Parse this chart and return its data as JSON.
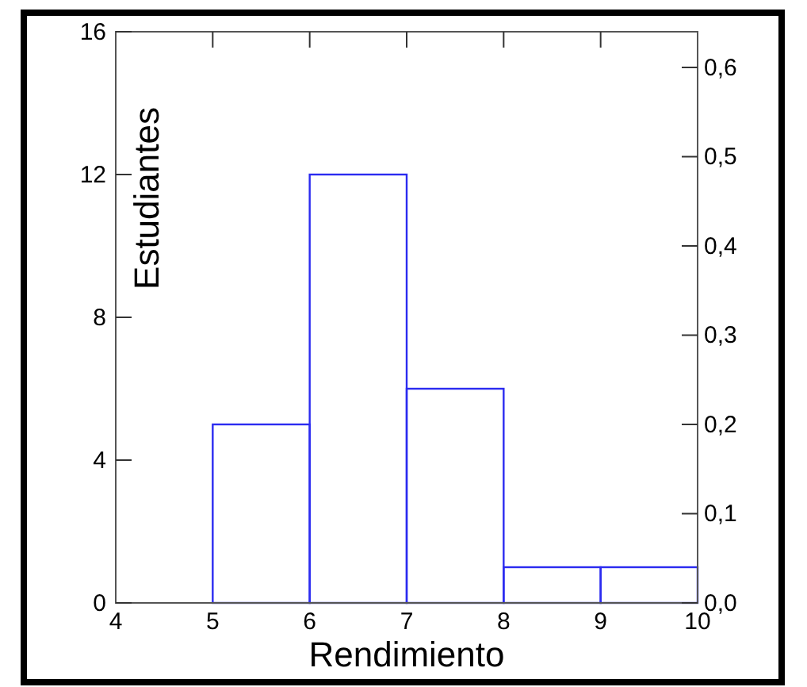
{
  "chart_data": {
    "type": "histogram",
    "xlabel": "Rendimiento",
    "ylabel": "Estudiantes",
    "bins": [
      4,
      5,
      6,
      7,
      8,
      9,
      10
    ],
    "values": [
      0,
      5,
      12,
      6,
      1,
      1
    ],
    "color": "#2b2bf0",
    "xlim": [
      4,
      10
    ],
    "xticks": [
      4,
      5,
      6,
      7,
      8,
      9,
      10
    ],
    "ylim": [
      0,
      16
    ],
    "yticks": [
      0,
      4,
      8,
      12,
      16
    ],
    "y2lim": [
      0,
      0.64
    ],
    "y2ticks": [
      {
        "value": 0,
        "label": "0,0"
      },
      {
        "value": 0.1,
        "label": "0,1"
      },
      {
        "value": 0.2,
        "label": "0,2"
      },
      {
        "value": 0.3,
        "label": "0,3"
      },
      {
        "value": 0.4,
        "label": "0,4"
      },
      {
        "value": 0.5,
        "label": "0,5"
      },
      {
        "value": 0.6,
        "label": "0,6"
      }
    ],
    "grid": false
  }
}
